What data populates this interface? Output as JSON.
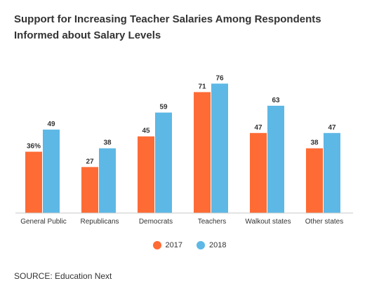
{
  "title": "Support for Increasing Teacher Salaries Among Respondents Informed about Salary Levels",
  "source": "SOURCE: Education Next",
  "colors": {
    "series_2017": "#ff6b35",
    "series_2018": "#5db8e6",
    "axis": "#c8c8c8"
  },
  "chart_data": {
    "type": "bar",
    "title": "Support for Increasing Teacher Salaries Among Respondents Informed about Salary Levels",
    "xlabel": "",
    "ylabel": "",
    "ylim": [
      0,
      80
    ],
    "grid": false,
    "legend_position": "bottom",
    "categories": [
      "General Public",
      "Republicans",
      "Democrats",
      "Teachers",
      "Walkout states",
      "Other states"
    ],
    "series": [
      {
        "name": "2017",
        "values": [
          36,
          27,
          45,
          71,
          47,
          38
        ],
        "labels": [
          "36%",
          "27",
          "45",
          "71",
          "47",
          "38"
        ]
      },
      {
        "name": "2018",
        "values": [
          49,
          38,
          59,
          76,
          63,
          47
        ],
        "labels": [
          "49",
          "38",
          "59",
          "76",
          "63",
          "47"
        ]
      }
    ]
  }
}
